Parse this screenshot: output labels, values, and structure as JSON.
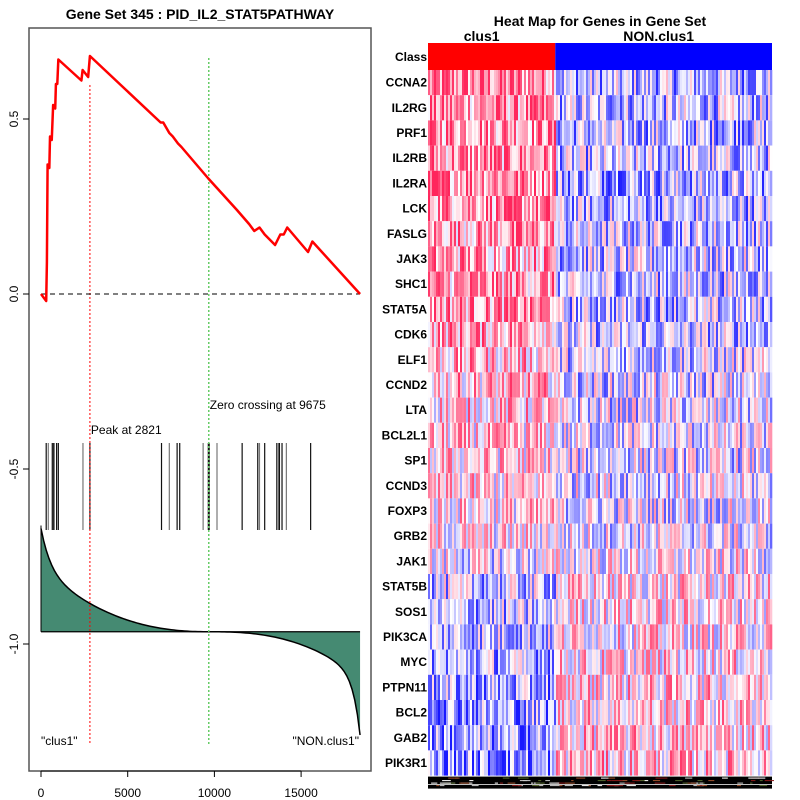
{
  "chart_data": [
    {
      "type": "line",
      "title": "Gene Set  345 : PID_IL2_STAT5PATHWAY",
      "xlabel": "",
      "ylabel": "",
      "xlim": [
        0,
        18400
      ],
      "ylim": [
        -1.25,
        0.72
      ],
      "x_ticks": [
        0,
        5000,
        10000,
        15000
      ],
      "x_tick_labels": [
        "0",
        "5000",
        "10000",
        "15000"
      ],
      "y_ticks": [
        0.5,
        0.0,
        -0.5,
        -1.0
      ],
      "y_tick_labels": [
        "0.5",
        "0.0",
        "-0.5",
        "-1.0"
      ],
      "running_es": {
        "name": "Enrichment score",
        "color": "#ff0000",
        "points": [
          [
            0,
            0.0
          ],
          [
            300,
            -0.02
          ],
          [
            340,
            0.09
          ],
          [
            380,
            0.37
          ],
          [
            480,
            0.36
          ],
          [
            520,
            0.45
          ],
          [
            620,
            0.44
          ],
          [
            700,
            0.54
          ],
          [
            820,
            0.53
          ],
          [
            860,
            0.6
          ],
          [
            940,
            0.6
          ],
          [
            1000,
            0.67
          ],
          [
            2330,
            0.61
          ],
          [
            2400,
            0.64
          ],
          [
            2720,
            0.62
          ],
          [
            2821,
            0.68
          ],
          [
            6900,
            0.49
          ],
          [
            7050,
            0.49
          ],
          [
            7400,
            0.46
          ],
          [
            7600,
            0.45
          ],
          [
            7900,
            0.43
          ],
          [
            8100,
            0.42
          ],
          [
            9650,
            0.33
          ],
          [
            10200,
            0.3
          ],
          [
            11300,
            0.24
          ],
          [
            12000,
            0.2
          ],
          [
            12300,
            0.18
          ],
          [
            12600,
            0.19
          ],
          [
            12900,
            0.17
          ],
          [
            13500,
            0.14
          ],
          [
            13800,
            0.17
          ],
          [
            14000,
            0.17
          ],
          [
            14200,
            0.19
          ],
          [
            15400,
            0.12
          ],
          [
            15650,
            0.15
          ],
          [
            18400,
            0.0
          ]
        ]
      },
      "zero_line": {
        "y": 0.0,
        "style": "dashed",
        "color": "#000000"
      },
      "peak": {
        "x": 2821,
        "label": "Peak at 2821",
        "color": "#ff0000"
      },
      "zero_crossing": {
        "x": 9675,
        "label": "Zero crossing at 9675",
        "color": "#66cc66"
      },
      "hits": [
        300,
        420,
        650,
        720,
        770,
        900,
        1000,
        2420,
        2821,
        6950,
        7400,
        7850,
        8000,
        9350,
        9650,
        9700,
        10150,
        11600,
        12500,
        12600,
        12900,
        13600,
        13700,
        13750,
        13900,
        14150,
        15550
      ],
      "ranking_metric": {
        "fill": "#458a72",
        "baseline": -0.965,
        "start": -0.67,
        "end": -1.26,
        "crossing": 9675
      },
      "class_labels": {
        "left": "\"clus1\"",
        "right": "\"NON.clus1\""
      }
    },
    {
      "type": "heatmap",
      "title": "Heat Map for Genes in Gene Set",
      "column_groups": [
        {
          "name": "clus1",
          "color": "#ff0000",
          "fraction": 0.37
        },
        {
          "name": "NON.clus1",
          "color": "#0000ff",
          "fraction": 0.63
        }
      ],
      "class_row_label": "Class",
      "rows": [
        "CCNA2",
        "IL2RG",
        "PRF1",
        "IL2RB",
        "IL2RA",
        "LCK",
        "FASLG",
        "JAK3",
        "SHC1",
        "STAT5A",
        "CDK6",
        "ELF1",
        "CCND2",
        "LTA",
        "BCL2L1",
        "SP1",
        "CCND3",
        "FOXP3",
        "GRB2",
        "JAK1",
        "STAT5B",
        "SOS1",
        "PIK3CA",
        "MYC",
        "PTPN11",
        "BCL2",
        "GAB2",
        "PIK3R1"
      ],
      "row_trend": [
        0.55,
        0.5,
        0.55,
        0.5,
        0.6,
        0.55,
        0.45,
        0.45,
        0.45,
        0.5,
        0.45,
        0.3,
        0.3,
        0.25,
        0.2,
        0.2,
        0.15,
        0.15,
        0.1,
        -0.05,
        -0.25,
        -0.3,
        -0.25,
        -0.3,
        -0.4,
        -0.4,
        -0.45,
        -0.5
      ],
      "colorscale": {
        "low": "#0000ff",
        "mid": "#ffffff",
        "high": "#ff0000"
      }
    }
  ]
}
